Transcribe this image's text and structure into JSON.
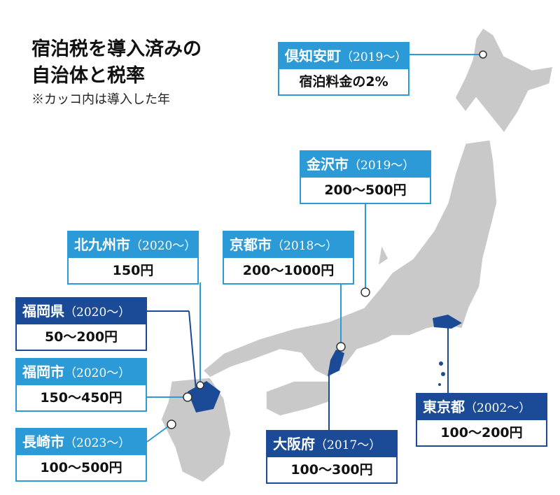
{
  "title": {
    "line1": "宿泊税を導入済みの",
    "line2": "自治体と税率"
  },
  "note": "※カッコ内は導入した年",
  "callouts": [
    {
      "name": "倶知安町",
      "year": "（2019～）",
      "rate": "宿泊料金の2%"
    },
    {
      "name": "金沢市",
      "year": "（2019～）",
      "rate": "200～500円"
    },
    {
      "name": "北九州市",
      "year": "（2020～）",
      "rate": "150円"
    },
    {
      "name": "京都市",
      "year": "（2018～）",
      "rate": "200～1000円"
    },
    {
      "name": "福岡県",
      "year": "（2020～）",
      "rate": "50～200円"
    },
    {
      "name": "福岡市",
      "year": "（2020～）",
      "rate": "150～450円"
    },
    {
      "name": "長崎市",
      "year": "（2023～）",
      "rate": "100～500円"
    },
    {
      "name": "大阪府",
      "year": "（2017～）",
      "rate": "100～300円"
    },
    {
      "name": "東京都",
      "year": "（2002～）",
      "rate": "100～200円"
    }
  ]
}
